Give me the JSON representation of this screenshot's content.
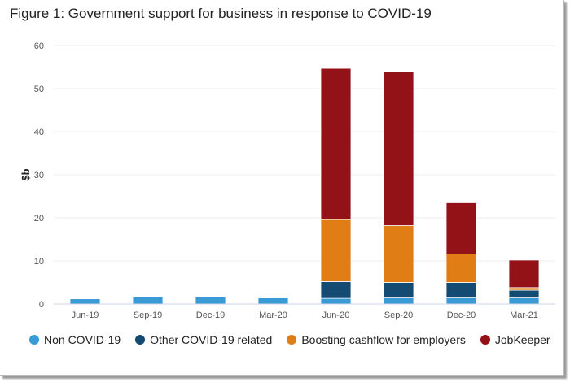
{
  "chart_data": {
    "type": "bar",
    "stacked": true,
    "title": "Figure 1: Government support for business in response to COVID-19",
    "xlabel": "",
    "ylabel": "$b",
    "ylim": [
      0,
      60
    ],
    "yticks": [
      0,
      10,
      20,
      30,
      40,
      50,
      60
    ],
    "grid": true,
    "legend_position": "bottom",
    "categories": [
      "Jun-19",
      "Sep-19",
      "Dec-19",
      "Mar-20",
      "Jun-20",
      "Sep-20",
      "Dec-20",
      "Mar-21"
    ],
    "series": [
      {
        "name": "Non COVID-19",
        "color": "#3a9ad6",
        "values": [
          1.2,
          1.6,
          1.6,
          1.4,
          1.3,
          1.4,
          1.4,
          1.4
        ]
      },
      {
        "name": "Other COVID-19 related",
        "color": "#154a72",
        "values": [
          0,
          0,
          0,
          0,
          3.9,
          3.6,
          3.6,
          1.8
        ]
      },
      {
        "name": "Boosting cashflow for employers",
        "color": "#e07d14",
        "values": [
          0,
          0,
          0,
          0,
          14.4,
          13.2,
          6.6,
          0.6
        ]
      },
      {
        "name": "JobKeeper",
        "color": "#921218",
        "values": [
          0,
          0,
          0,
          0,
          35.1,
          35.8,
          11.9,
          6.4
        ]
      }
    ]
  }
}
